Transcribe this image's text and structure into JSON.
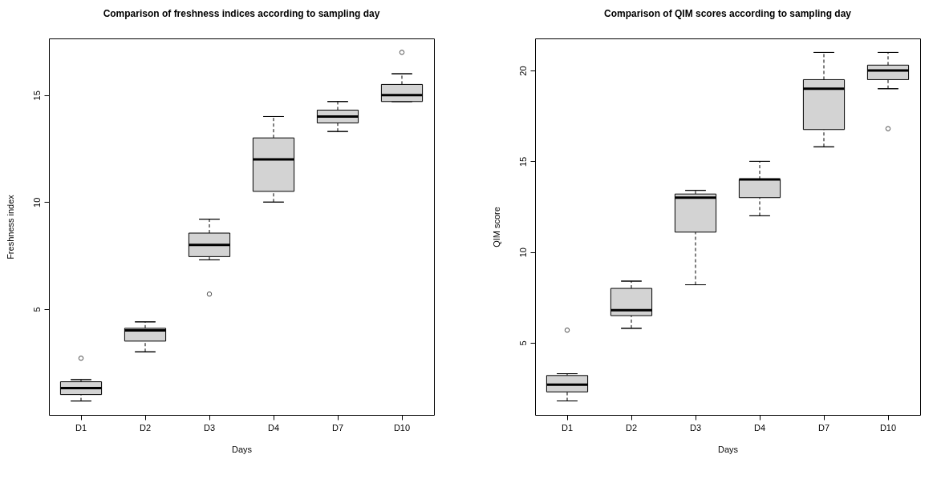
{
  "chart_data": [
    {
      "type": "box",
      "title": "Comparison of freshness indices according to sampling day",
      "xlabel": "Days",
      "ylabel": "Freshness index",
      "color": "#d3d3d3",
      "categories": [
        "D1",
        "D2",
        "D3",
        "D4",
        "D7",
        "D10"
      ],
      "ylim": [
        0.05,
        17.65
      ],
      "yticks": [
        5,
        10,
        15
      ],
      "boxes": [
        {
          "low": 0.7,
          "q1": 1.0,
          "median": 1.3,
          "q3": 1.6,
          "high": 1.7,
          "outliers": [
            2.7
          ]
        },
        {
          "low": 3.0,
          "q1": 3.5,
          "median": 4.0,
          "q3": 4.1,
          "high": 4.4
        },
        {
          "low": 7.3,
          "q1": 7.45,
          "median": 8.0,
          "q3": 8.55,
          "high": 9.2,
          "outliers": [
            5.7
          ]
        },
        {
          "low": 10.0,
          "q1": 10.5,
          "median": 12.0,
          "q3": 13.0,
          "high": 14.0
        },
        {
          "low": 13.3,
          "q1": 13.7,
          "median": 14.0,
          "q3": 14.3,
          "high": 14.7
        },
        {
          "low": 14.7,
          "q1": 14.7,
          "median": 15.0,
          "q3": 15.5,
          "high": 16.0,
          "outliers": [
            17.0
          ]
        }
      ]
    },
    {
      "type": "box",
      "title": "Comparison of QIM scores according to sampling day",
      "xlabel": "Days",
      "ylabel": "QIM score",
      "color": "#d3d3d3",
      "categories": [
        "D1",
        "D2",
        "D3",
        "D4",
        "D7",
        "D10"
      ],
      "ylim": [
        1.03,
        21.77
      ],
      "yticks": [
        5,
        10,
        15,
        20
      ],
      "boxes": [
        {
          "low": 1.8,
          "q1": 2.3,
          "median": 2.7,
          "q3": 3.2,
          "high": 3.3,
          "outliers": [
            5.7
          ]
        },
        {
          "low": 5.8,
          "q1": 6.5,
          "median": 6.8,
          "q3": 8.0,
          "high": 8.4
        },
        {
          "low": 8.2,
          "q1": 11.1,
          "median": 13.0,
          "q3": 13.2,
          "high": 13.4
        },
        {
          "low": 12.0,
          "q1": 13.0,
          "median": 14.0,
          "q3": 14.0,
          "high": 15.0
        },
        {
          "low": 15.8,
          "q1": 16.75,
          "median": 19.0,
          "q3": 19.5,
          "high": 21.0
        },
        {
          "low": 19.0,
          "q1": 19.5,
          "median": 20.0,
          "q3": 20.3,
          "high": 21.0,
          "outliers": [
            16.8
          ]
        }
      ]
    }
  ]
}
